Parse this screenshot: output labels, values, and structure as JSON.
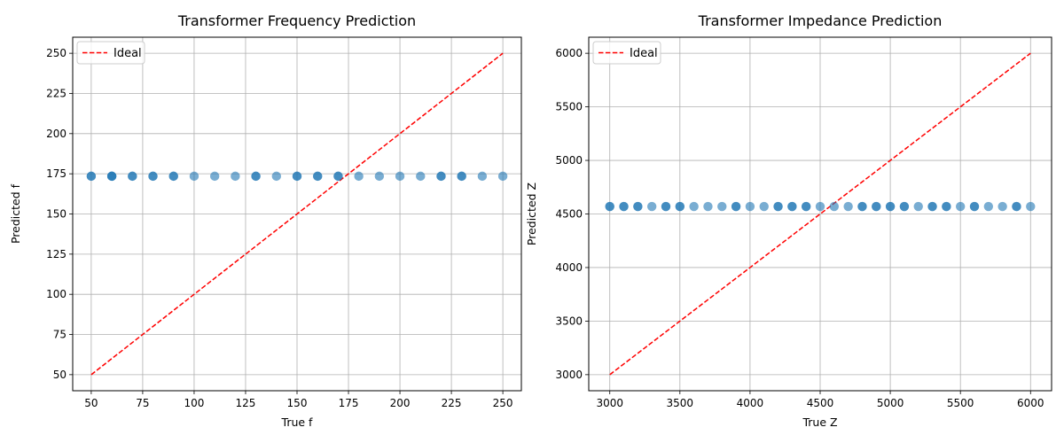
{
  "chart_data": [
    {
      "type": "scatter",
      "title": "Transformer Frequency Prediction",
      "xlabel": "True f",
      "ylabel": "Predicted f",
      "xlim": [
        41,
        259
      ],
      "ylim": [
        40,
        260
      ],
      "xticks": [
        50,
        75,
        100,
        125,
        150,
        175,
        200,
        225,
        250
      ],
      "yticks": [
        50,
        75,
        100,
        125,
        150,
        175,
        200,
        225,
        250
      ],
      "grid": true,
      "legend": {
        "placement": "top-left",
        "entries": [
          "Ideal"
        ]
      },
      "colors": {
        "points": "#1f77b4",
        "ideal": "#ff0000"
      },
      "series": [
        {
          "kind": "scatter",
          "x": [
            50,
            50,
            60,
            60,
            60,
            70,
            70,
            80,
            80,
            90,
            90,
            100,
            110,
            120,
            130,
            130,
            140,
            150,
            150,
            160,
            160,
            170,
            170,
            180,
            190,
            200,
            210,
            220,
            220,
            230,
            230,
            240,
            250
          ],
          "y": [
            173.5,
            173.5,
            173.5,
            173.5,
            173.5,
            173.5,
            173.5,
            173.5,
            173.5,
            173.5,
            173.5,
            173.5,
            173.5,
            173.5,
            173.5,
            173.5,
            173.5,
            173.5,
            173.5,
            173.5,
            173.5,
            173.5,
            173.5,
            173.5,
            173.5,
            173.5,
            173.5,
            173.5,
            173.5,
            173.5,
            173.5,
            173.5,
            173.5
          ]
        },
        {
          "kind": "line",
          "name": "Ideal",
          "x": [
            50,
            250
          ],
          "y": [
            50,
            250
          ]
        }
      ]
    },
    {
      "type": "scatter",
      "title": "Transformer Impedance Prediction",
      "xlabel": "True Z",
      "ylabel": "Predicted Z",
      "xlim": [
        2850,
        6150
      ],
      "ylim": [
        2850,
        6150
      ],
      "xticks": [
        3000,
        3500,
        4000,
        4500,
        5000,
        5500,
        6000
      ],
      "yticks": [
        3000,
        3500,
        4000,
        4500,
        5000,
        5500,
        6000
      ],
      "grid": true,
      "legend": {
        "placement": "top-left",
        "entries": [
          "Ideal"
        ]
      },
      "colors": {
        "points": "#1f77b4",
        "ideal": "#ff0000"
      },
      "series": [
        {
          "kind": "scatter",
          "x": [
            3000,
            3000,
            3100,
            3100,
            3200,
            3200,
            3300,
            3400,
            3400,
            3500,
            3500,
            3600,
            3700,
            3800,
            3900,
            3900,
            4000,
            4100,
            4200,
            4200,
            4300,
            4300,
            4400,
            4400,
            4500,
            4600,
            4700,
            4800,
            4800,
            4900,
            4900,
            5000,
            5000,
            5100,
            5100,
            5200,
            5300,
            5300,
            5400,
            5400,
            5500,
            5600,
            5600,
            5700,
            5800,
            5900,
            5900,
            6000
          ],
          "y": [
            4570,
            4570,
            4570,
            4570,
            4570,
            4570,
            4570,
            4570,
            4570,
            4570,
            4570,
            4570,
            4570,
            4570,
            4570,
            4570,
            4570,
            4570,
            4570,
            4570,
            4570,
            4570,
            4570,
            4570,
            4570,
            4570,
            4570,
            4570,
            4570,
            4570,
            4570,
            4570,
            4570,
            4570,
            4570,
            4570,
            4570,
            4570,
            4570,
            4570,
            4570,
            4570,
            4570,
            4570,
            4570,
            4570,
            4570,
            4570
          ]
        },
        {
          "kind": "line",
          "name": "Ideal",
          "x": [
            3000,
            6000
          ],
          "y": [
            3000,
            6000
          ]
        }
      ]
    }
  ]
}
